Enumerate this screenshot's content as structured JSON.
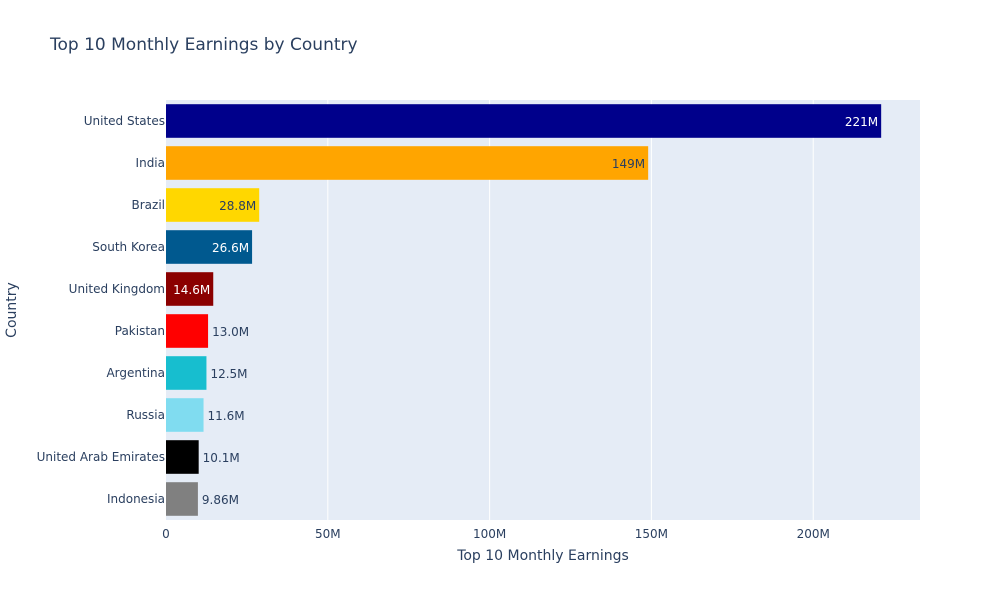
{
  "chart_data": {
    "type": "bar",
    "orientation": "horizontal",
    "title": "Top 10 Monthly Earnings by Country",
    "xlabel": "Top 10 Monthly Earnings",
    "ylabel": "Country",
    "xlim": [
      0,
      233000000
    ],
    "x_ticks": [
      {
        "value": 0,
        "label": "0"
      },
      {
        "value": 50000000,
        "label": "50M"
      },
      {
        "value": 100000000,
        "label": "100M"
      },
      {
        "value": 150000000,
        "label": "150M"
      },
      {
        "value": 200000000,
        "label": "200M"
      }
    ],
    "grid": true,
    "plot_background": "#e5ecf6",
    "categories": [
      "United States",
      "India",
      "Brazil",
      "South Korea",
      "United Kingdom",
      "Pakistan",
      "Argentina",
      "Russia",
      "United Arab Emirates",
      "Indonesia"
    ],
    "values": [
      221000000,
      149000000,
      28800000,
      26600000,
      14600000,
      13000000,
      12500000,
      11600000,
      10100000,
      9860000
    ],
    "value_labels": [
      "221M",
      "149M",
      "28.8M",
      "26.6M",
      "14.6M",
      "13.0M",
      "12.5M",
      "11.6M",
      "10.1M",
      "9.86M"
    ],
    "colors": [
      "#00008b",
      "#ffa500",
      "#ffd700",
      "#00598f",
      "#8b0000",
      "#ff0000",
      "#17becf",
      "#80dcf0",
      "#000000",
      "#808080"
    ],
    "label_colors": [
      "#ffffff",
      "#2a3f5f",
      "#2a3f5f",
      "#ffffff",
      "#ffffff",
      "#2a3f5f",
      "#2a3f5f",
      "#2a3f5f",
      "#2a3f5f",
      "#2a3f5f"
    ],
    "label_positions": [
      "inside",
      "inside",
      "inside",
      "inside",
      "inside",
      "outside",
      "outside",
      "outside",
      "outside",
      "outside"
    ]
  }
}
